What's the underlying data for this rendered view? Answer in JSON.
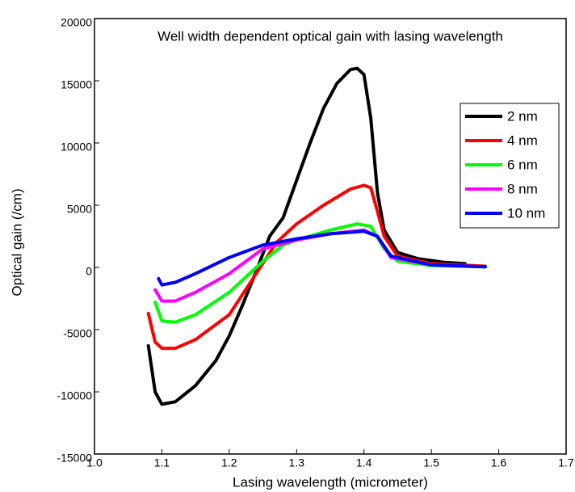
{
  "chart_data": {
    "type": "line",
    "title": "Well width dependent optical gain with lasing wavelength",
    "x_label": "Lasing wavelength (micrometer)",
    "y_label": "Optical gain (/cm)",
    "xlim": [
      1.0,
      1.7
    ],
    "xticks": [
      {
        "value": 1.0,
        "label": "1.0"
      },
      1.1,
      1.2,
      1.3,
      1.4,
      1.5,
      1.6,
      1.7
    ],
    "ylim": [
      -15000,
      20000
    ],
    "yticks": [
      -15000,
      -10000,
      -5000,
      0,
      5000,
      10000,
      15000,
      20000
    ],
    "legend": "upper right",
    "series": [
      {
        "name": "2 nm",
        "color": "#000000",
        "x": [
          1.08,
          1.09,
          1.1,
          1.12,
          1.15,
          1.18,
          1.2,
          1.22,
          1.24,
          1.26,
          1.28,
          1.3,
          1.32,
          1.34,
          1.36,
          1.38,
          1.39,
          1.4,
          1.41,
          1.42,
          1.43,
          1.45,
          1.48,
          1.52,
          1.55
        ],
        "values": [
          -6300,
          -10000,
          -11000,
          -10800,
          -9500,
          -7500,
          -5500,
          -3000,
          -300,
          2500,
          4000,
          7000,
          10000,
          12800,
          14800,
          15900,
          16000,
          15500,
          12000,
          6000,
          3000,
          1200,
          700,
          400,
          300
        ]
      },
      {
        "name": "4 nm",
        "color": "#ff0000",
        "x": [
          1.08,
          1.09,
          1.1,
          1.12,
          1.15,
          1.2,
          1.24,
          1.27,
          1.3,
          1.34,
          1.38,
          1.4,
          1.41,
          1.42,
          1.43,
          1.45,
          1.5,
          1.58
        ],
        "values": [
          -3700,
          -6000,
          -6500,
          -6500,
          -5800,
          -3800,
          -500,
          2000,
          3500,
          5000,
          6300,
          6600,
          6400,
          4500,
          2500,
          900,
          300,
          100
        ]
      },
      {
        "name": "6 nm",
        "color": "#00ff00",
        "x": [
          1.09,
          1.1,
          1.12,
          1.15,
          1.2,
          1.25,
          1.28,
          1.3,
          1.35,
          1.39,
          1.41,
          1.43,
          1.45,
          1.5,
          1.58
        ],
        "values": [
          -2800,
          -4300,
          -4400,
          -3800,
          -2000,
          500,
          1800,
          2200,
          3000,
          3500,
          3300,
          1500,
          500,
          150,
          50
        ]
      },
      {
        "name": "8 nm",
        "color": "#ff00ff",
        "x": [
          1.09,
          1.1,
          1.12,
          1.15,
          1.2,
          1.25,
          1.3,
          1.35,
          1.4,
          1.42,
          1.44,
          1.5,
          1.58
        ],
        "values": [
          -1800,
          -2700,
          -2700,
          -2000,
          -500,
          1500,
          2200,
          2700,
          3000,
          2500,
          800,
          200,
          50
        ]
      },
      {
        "name": "10 nm",
        "color": "#0000ff",
        "x": [
          1.095,
          1.1,
          1.12,
          1.15,
          1.2,
          1.25,
          1.3,
          1.35,
          1.4,
          1.42,
          1.44,
          1.5,
          1.58
        ],
        "values": [
          -900,
          -1400,
          -1200,
          -500,
          800,
          1800,
          2300,
          2700,
          2900,
          2500,
          900,
          200,
          50
        ]
      }
    ]
  }
}
